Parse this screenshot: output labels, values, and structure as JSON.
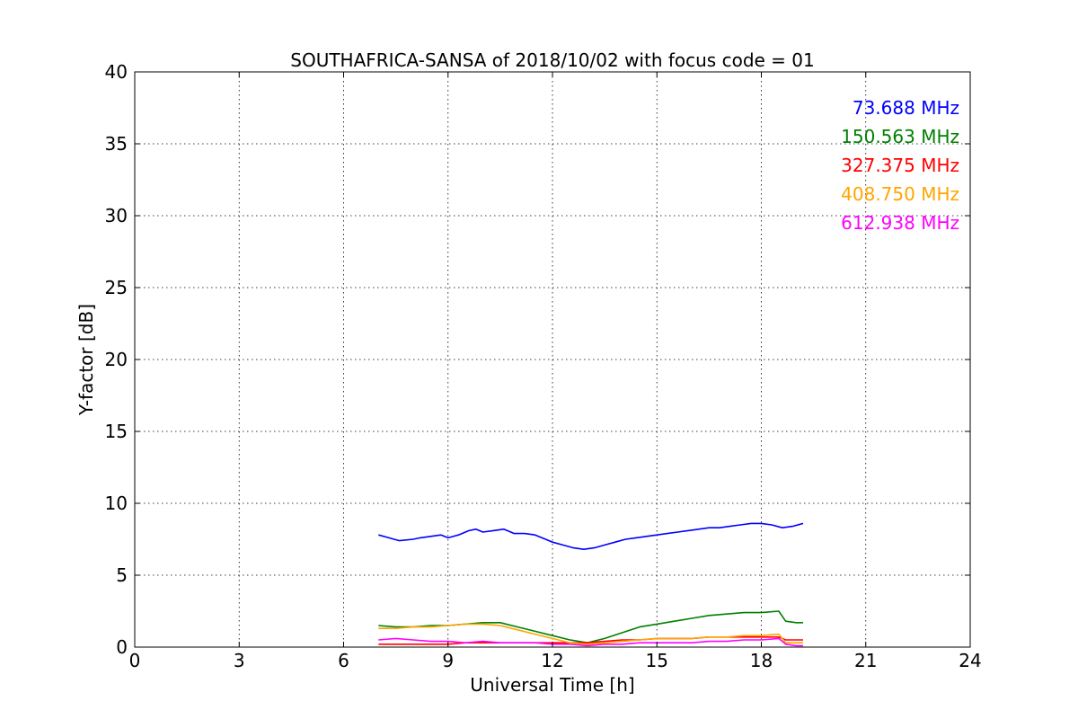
{
  "chart_data": {
    "type": "line",
    "title": "SOUTHAFRICA-SANSA of 2018/10/02 with focus code = 01",
    "xlabel": "Universal Time [h]",
    "ylabel": "Y-factor [dB]",
    "xlim": [
      0,
      24
    ],
    "ylim": [
      0,
      40
    ],
    "xticks": [
      "0",
      "3",
      "6",
      "9",
      "12",
      "15",
      "18",
      "21",
      "24"
    ],
    "yticks": [
      "0",
      "5",
      "10",
      "15",
      "20",
      "25",
      "30",
      "35",
      "40"
    ],
    "grid": true,
    "legend_position": "top-right",
    "series": [
      {
        "name": "73.688 MHz",
        "color": "#0000ff",
        "x": [
          7.0,
          7.3,
          7.6,
          8.0,
          8.2,
          8.5,
          8.8,
          9.0,
          9.3,
          9.6,
          9.8,
          10.0,
          10.3,
          10.6,
          10.9,
          11.2,
          11.5,
          11.8,
          12.0,
          12.3,
          12.6,
          12.9,
          13.2,
          13.5,
          13.8,
          14.1,
          14.4,
          14.7,
          15.0,
          15.3,
          15.6,
          15.9,
          16.2,
          16.5,
          16.8,
          17.1,
          17.4,
          17.7,
          18.0,
          18.3,
          18.6,
          18.9,
          19.2
        ],
        "y": [
          7.8,
          7.6,
          7.4,
          7.5,
          7.6,
          7.7,
          7.8,
          7.6,
          7.8,
          8.1,
          8.2,
          8.0,
          8.1,
          8.2,
          7.9,
          7.9,
          7.8,
          7.5,
          7.3,
          7.1,
          6.9,
          6.8,
          6.9,
          7.1,
          7.3,
          7.5,
          7.6,
          7.7,
          7.8,
          7.9,
          8.0,
          8.1,
          8.2,
          8.3,
          8.3,
          8.4,
          8.5,
          8.6,
          8.6,
          8.5,
          8.3,
          8.4,
          8.6
        ]
      },
      {
        "name": "150.563 MHz",
        "color": "#008000",
        "x": [
          7.0,
          7.5,
          8.0,
          8.5,
          9.0,
          9.5,
          10.0,
          10.5,
          11.0,
          11.5,
          12.0,
          12.5,
          13.0,
          13.5,
          14.0,
          14.5,
          15.0,
          15.5,
          16.0,
          16.5,
          17.0,
          17.5,
          18.0,
          18.5,
          18.7,
          19.0,
          19.2
        ],
        "y": [
          1.5,
          1.4,
          1.4,
          1.5,
          1.5,
          1.6,
          1.7,
          1.7,
          1.4,
          1.1,
          0.8,
          0.5,
          0.3,
          0.6,
          1.0,
          1.4,
          1.6,
          1.8,
          2.0,
          2.2,
          2.3,
          2.4,
          2.4,
          2.5,
          1.8,
          1.7,
          1.7
        ]
      },
      {
        "name": "327.375 MHz",
        "color": "#ff0000",
        "x": [
          7.0,
          7.5,
          8.0,
          8.5,
          9.0,
          9.5,
          10.0,
          10.5,
          11.0,
          11.5,
          12.0,
          12.5,
          13.0,
          13.5,
          14.0,
          14.5,
          15.0,
          15.5,
          16.0,
          16.5,
          17.0,
          17.5,
          18.0,
          18.5,
          18.7,
          19.0,
          19.2
        ],
        "y": [
          0.2,
          0.2,
          0.2,
          0.2,
          0.2,
          0.3,
          0.3,
          0.3,
          0.3,
          0.3,
          0.3,
          0.3,
          0.3,
          0.4,
          0.5,
          0.5,
          0.6,
          0.6,
          0.6,
          0.7,
          0.7,
          0.7,
          0.7,
          0.7,
          0.5,
          0.5,
          0.5
        ]
      },
      {
        "name": "408.750 MHz",
        "color": "#ffa500",
        "x": [
          7.0,
          7.5,
          8.0,
          8.5,
          9.0,
          9.5,
          10.0,
          10.5,
          11.0,
          11.5,
          12.0,
          12.5,
          13.0,
          13.5,
          14.0,
          14.5,
          15.0,
          15.5,
          16.0,
          16.5,
          17.0,
          17.5,
          18.0,
          18.5,
          18.7,
          19.0,
          19.2
        ],
        "y": [
          1.3,
          1.3,
          1.4,
          1.4,
          1.5,
          1.6,
          1.6,
          1.5,
          1.2,
          0.9,
          0.6,
          0.3,
          0.2,
          0.3,
          0.4,
          0.5,
          0.6,
          0.6,
          0.6,
          0.7,
          0.7,
          0.8,
          0.8,
          0.9,
          0.3,
          0.3,
          0.3
        ]
      },
      {
        "name": "612.938 MHz",
        "color": "#ff00ff",
        "x": [
          7.0,
          7.5,
          8.0,
          8.5,
          9.0,
          9.5,
          10.0,
          10.5,
          11.0,
          11.5,
          12.0,
          12.5,
          13.0,
          13.5,
          14.0,
          14.5,
          15.0,
          15.5,
          16.0,
          16.5,
          17.0,
          17.5,
          18.0,
          18.5,
          18.7,
          19.0,
          19.2
        ],
        "y": [
          0.5,
          0.6,
          0.5,
          0.4,
          0.4,
          0.3,
          0.4,
          0.3,
          0.3,
          0.3,
          0.2,
          0.2,
          0.1,
          0.2,
          0.2,
          0.3,
          0.3,
          0.3,
          0.3,
          0.4,
          0.4,
          0.5,
          0.5,
          0.6,
          0.2,
          0.1,
          0.1
        ]
      }
    ]
  }
}
